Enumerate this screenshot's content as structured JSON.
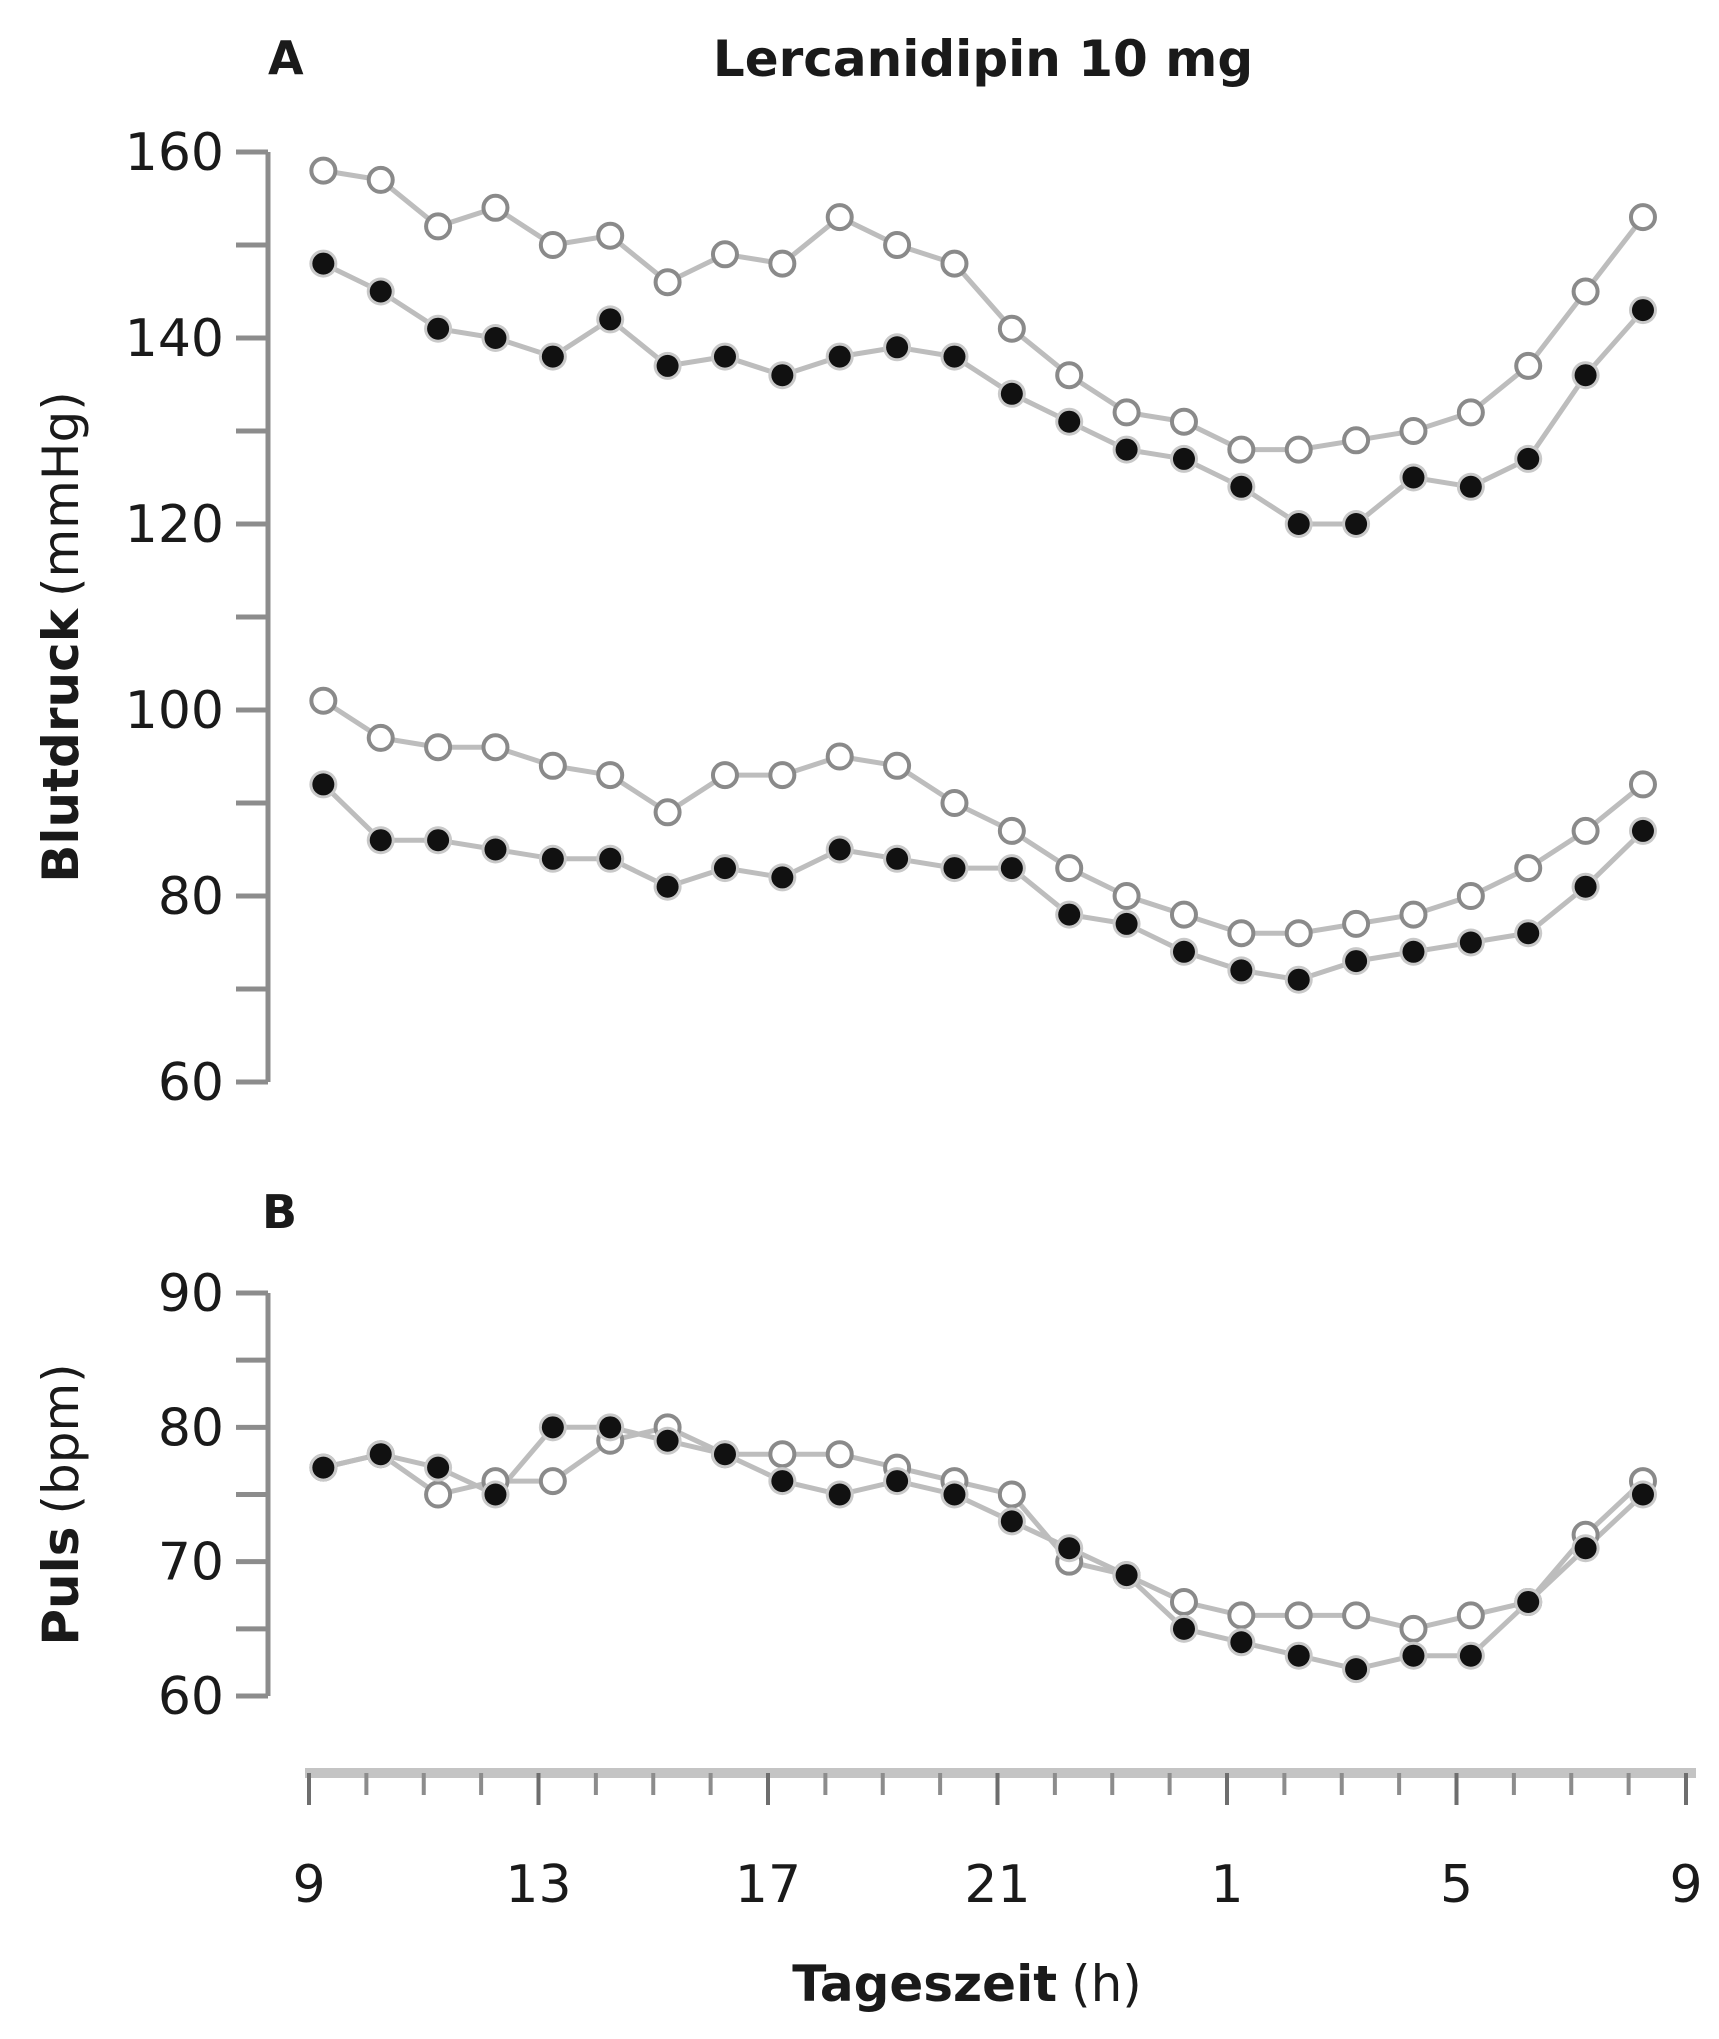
{
  "chart_data": {
    "type": "line",
    "title": "Lercanidipin 10 mg",
    "x_ticks": [
      "9",
      "13",
      "17",
      "21",
      "1",
      "5",
      "9"
    ],
    "xlabel_bold": "Tageszeit",
    "xlabel_unit": "(h)",
    "x": [
      9.25,
      10.25,
      11.25,
      12.25,
      13.25,
      14.25,
      15.25,
      16.25,
      17.25,
      18.25,
      19.25,
      20.25,
      21.25,
      22.25,
      23.25,
      24.25,
      25.25,
      26.25,
      27.25,
      28.25,
      29.25,
      30.25,
      31.25,
      32.25
    ],
    "panels": [
      {
        "letter": "A",
        "ylabel_bold": "Blutdruck",
        "ylabel_unit": "(mmHg)",
        "ylim": [
          60,
          160
        ],
        "yticks": [
          60,
          80,
          100,
          120,
          140,
          160
        ],
        "series": [
          {
            "name": "systolic-open",
            "marker": "open",
            "values": [
              158,
              157,
              152,
              154,
              150,
              151,
              146,
              149,
              148,
              153,
              150,
              148,
              141,
              136,
              132,
              131,
              128,
              128,
              129,
              130,
              132,
              137,
              145,
              153
            ]
          },
          {
            "name": "systolic-filled",
            "marker": "filled",
            "values": [
              148,
              145,
              141,
              140,
              138,
              142,
              137,
              138,
              136,
              138,
              139,
              138,
              134,
              131,
              128,
              127,
              124,
              120,
              120,
              125,
              124,
              127,
              136,
              143
            ]
          },
          {
            "name": "diastolic-open",
            "marker": "open",
            "values": [
              101,
              97,
              96,
              96,
              94,
              93,
              89,
              93,
              93,
              95,
              94,
              90,
              87,
              83,
              80,
              78,
              76,
              76,
              77,
              78,
              80,
              83,
              87,
              92
            ]
          },
          {
            "name": "diastolic-filled",
            "marker": "filled",
            "values": [
              92,
              86,
              86,
              85,
              84,
              84,
              81,
              83,
              82,
              85,
              84,
              83,
              83,
              78,
              77,
              74,
              72,
              71,
              73,
              74,
              75,
              76,
              81,
              87
            ]
          }
        ]
      },
      {
        "letter": "B",
        "ylabel_bold": "Puls",
        "ylabel_unit": "(bpm)",
        "ylim": [
          60,
          90
        ],
        "yticks": [
          60,
          70,
          80,
          90
        ],
        "series": [
          {
            "name": "pulse-open",
            "marker": "open",
            "values": [
              77,
              78,
              75,
              76,
              76,
              79,
              80,
              78,
              78,
              78,
              77,
              76,
              75,
              70,
              69,
              67,
              66,
              66,
              66,
              65,
              66,
              67,
              72,
              76
            ]
          },
          {
            "name": "pulse-filled",
            "marker": "filled",
            "values": [
              77,
              78,
              77,
              75,
              80,
              80,
              79,
              78,
              76,
              75,
              76,
              75,
              73,
              71,
              69,
              65,
              64,
              63,
              62,
              63,
              63,
              67,
              71,
              75
            ]
          }
        ]
      }
    ]
  }
}
